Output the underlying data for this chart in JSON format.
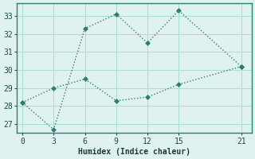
{
  "xlabel": "Humidex (Indice chaleur)",
  "background_color": "#dff2f0",
  "line_color": "#2e7d72",
  "line1_x": [
    0,
    3,
    6,
    9,
    12,
    15,
    21
  ],
  "line1_y": [
    28.2,
    26.7,
    32.3,
    33.1,
    31.5,
    33.3,
    30.2
  ],
  "line2_x": [
    0,
    3,
    6,
    9,
    12,
    15,
    21
  ],
  "line2_y": [
    28.2,
    29.0,
    29.5,
    28.3,
    28.5,
    29.2,
    30.2
  ],
  "xlim": [
    -0.5,
    22
  ],
  "ylim": [
    26.5,
    33.7
  ],
  "xticks": [
    0,
    3,
    6,
    9,
    12,
    15,
    21
  ],
  "yticks": [
    27,
    28,
    29,
    30,
    31,
    32,
    33
  ],
  "grid_color": "#aaddd8",
  "markersize": 3,
  "linewidth": 1.0,
  "axis_fontsize": 7,
  "tick_fontsize": 7
}
